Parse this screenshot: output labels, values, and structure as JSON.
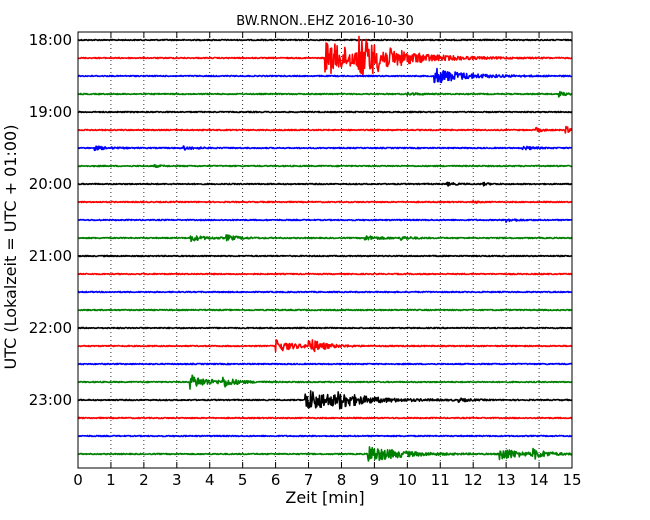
{
  "chart_data": {
    "type": "line",
    "title": "BW.RNON..EHZ 2016-10-30",
    "xlabel": "Zeit  [min]",
    "ylabel": "UTC (Lokalzeit = UTC + 01:00)",
    "xlim": [
      0,
      15
    ],
    "x_ticks": [
      "0",
      "1",
      "2",
      "3",
      "4",
      "5",
      "6",
      "7",
      "8",
      "9",
      "10",
      "11",
      "12",
      "13",
      "14",
      "15"
    ],
    "y_ticks": [
      "18:00",
      "19:00",
      "20:00",
      "21:00",
      "22:00",
      "23:00"
    ],
    "grid": "vertical-dotted",
    "trace_colors": [
      "#000000",
      "#ff0000",
      "#0000ff",
      "#008000"
    ],
    "traces": [
      {
        "start": "18:00",
        "events": []
      },
      {
        "start": "18:15",
        "events": [
          {
            "t": 7.5,
            "amp": 1.9,
            "dur": 3.5
          },
          {
            "t": 8.5,
            "amp": 1.7,
            "dur": 3.0
          }
        ]
      },
      {
        "start": "18:30",
        "events": [
          {
            "t": 10.8,
            "amp": 0.9,
            "dur": 2.5
          }
        ]
      },
      {
        "start": "18:45",
        "events": [
          {
            "t": 10.0,
            "amp": 0.15,
            "dur": 1.0
          },
          {
            "t": 14.6,
            "amp": 0.3,
            "dur": 0.5
          }
        ]
      },
      {
        "start": "19:00",
        "events": []
      },
      {
        "start": "19:15",
        "events": [
          {
            "t": 14.8,
            "amp": 0.5,
            "dur": 0.3
          },
          {
            "t": 13.9,
            "amp": 0.25,
            "dur": 0.5
          }
        ]
      },
      {
        "start": "19:30",
        "events": [
          {
            "t": 0.5,
            "amp": 0.2,
            "dur": 1.2
          },
          {
            "t": 3.2,
            "amp": 0.2,
            "dur": 1.0
          },
          {
            "t": 13.5,
            "amp": 0.2,
            "dur": 1.0
          }
        ]
      },
      {
        "start": "19:45",
        "events": [
          {
            "t": 2.3,
            "amp": 0.12,
            "dur": 0.6
          }
        ]
      },
      {
        "start": "20:00",
        "events": [
          {
            "t": 11.2,
            "amp": 0.2,
            "dur": 0.6
          },
          {
            "t": 12.3,
            "amp": 0.15,
            "dur": 0.5
          }
        ]
      },
      {
        "start": "20:15",
        "events": [
          {
            "t": 12.0,
            "amp": 0.15,
            "dur": 0.3
          }
        ]
      },
      {
        "start": "20:30",
        "events": [
          {
            "t": 13.0,
            "amp": 0.2,
            "dur": 0.8
          }
        ]
      },
      {
        "start": "20:45",
        "events": [
          {
            "t": 3.4,
            "amp": 0.35,
            "dur": 1.2
          },
          {
            "t": 4.5,
            "amp": 0.3,
            "dur": 1.0
          },
          {
            "t": 8.7,
            "amp": 0.25,
            "dur": 1.3
          },
          {
            "t": 9.8,
            "amp": 0.2,
            "dur": 0.8
          }
        ]
      },
      {
        "start": "21:00",
        "events": []
      },
      {
        "start": "21:15",
        "events": []
      },
      {
        "start": "21:30",
        "events": []
      },
      {
        "start": "21:45",
        "events": []
      },
      {
        "start": "22:00",
        "events": []
      },
      {
        "start": "22:15",
        "events": [
          {
            "t": 6.0,
            "amp": 0.7,
            "dur": 1.5
          },
          {
            "t": 7.0,
            "amp": 0.8,
            "dur": 1.2
          }
        ]
      },
      {
        "start": "22:30",
        "events": []
      },
      {
        "start": "22:45",
        "events": [
          {
            "t": 3.4,
            "amp": 0.8,
            "dur": 1.5
          },
          {
            "t": 4.4,
            "amp": 0.5,
            "dur": 1.0
          }
        ]
      },
      {
        "start": "23:00",
        "events": [
          {
            "t": 6.9,
            "amp": 1.2,
            "dur": 3.5
          },
          {
            "t": 7.9,
            "amp": 0.5,
            "dur": 1.5
          },
          {
            "t": 11.5,
            "amp": 0.2,
            "dur": 0.8
          }
        ]
      },
      {
        "start": "23:15",
        "events": []
      },
      {
        "start": "23:30",
        "events": []
      },
      {
        "start": "23:45",
        "events": [
          {
            "t": 8.8,
            "amp": 1.0,
            "dur": 2.5
          },
          {
            "t": 12.8,
            "amp": 0.8,
            "dur": 1.5
          },
          {
            "t": 13.8,
            "amp": 0.5,
            "dur": 1.2
          }
        ]
      }
    ]
  }
}
